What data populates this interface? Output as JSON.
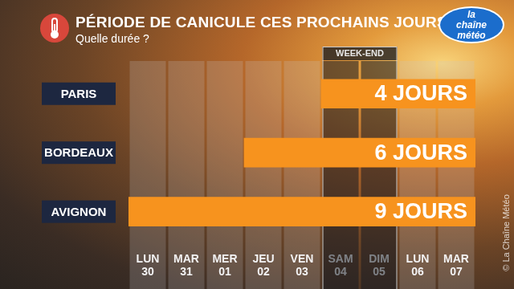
{
  "chart_data": {
    "type": "bar",
    "orientation": "horizontal",
    "title": "PÉRIODE DE CANICULE CES PROCHAINS JOURS",
    "subtitle": "Quelle durée ?",
    "categories": [
      "PARIS",
      "BORDEAUX",
      "AVIGNON"
    ],
    "days": [
      "LUN 30",
      "MAR 31",
      "MER 01",
      "JEU 02",
      "VEN 03",
      "SAM 04",
      "DIM 05",
      "LUN 06",
      "MAR 07"
    ],
    "starts": [
      "SAM 04",
      "JEU 02",
      "LUN 30"
    ],
    "values": [
      4,
      6,
      9
    ],
    "value_labels": [
      "4 JOURS",
      "6 JOURS",
      "9 JOURS"
    ],
    "data_labels": true,
    "color": "#f7931e",
    "annotations": [
      {
        "text": "WEEK-END",
        "from": "SAM 04",
        "to": "DIM 05"
      }
    ],
    "logo": "la chaîne météo",
    "credit": "© La Chaîne Météo",
    "grid": false
  }
}
